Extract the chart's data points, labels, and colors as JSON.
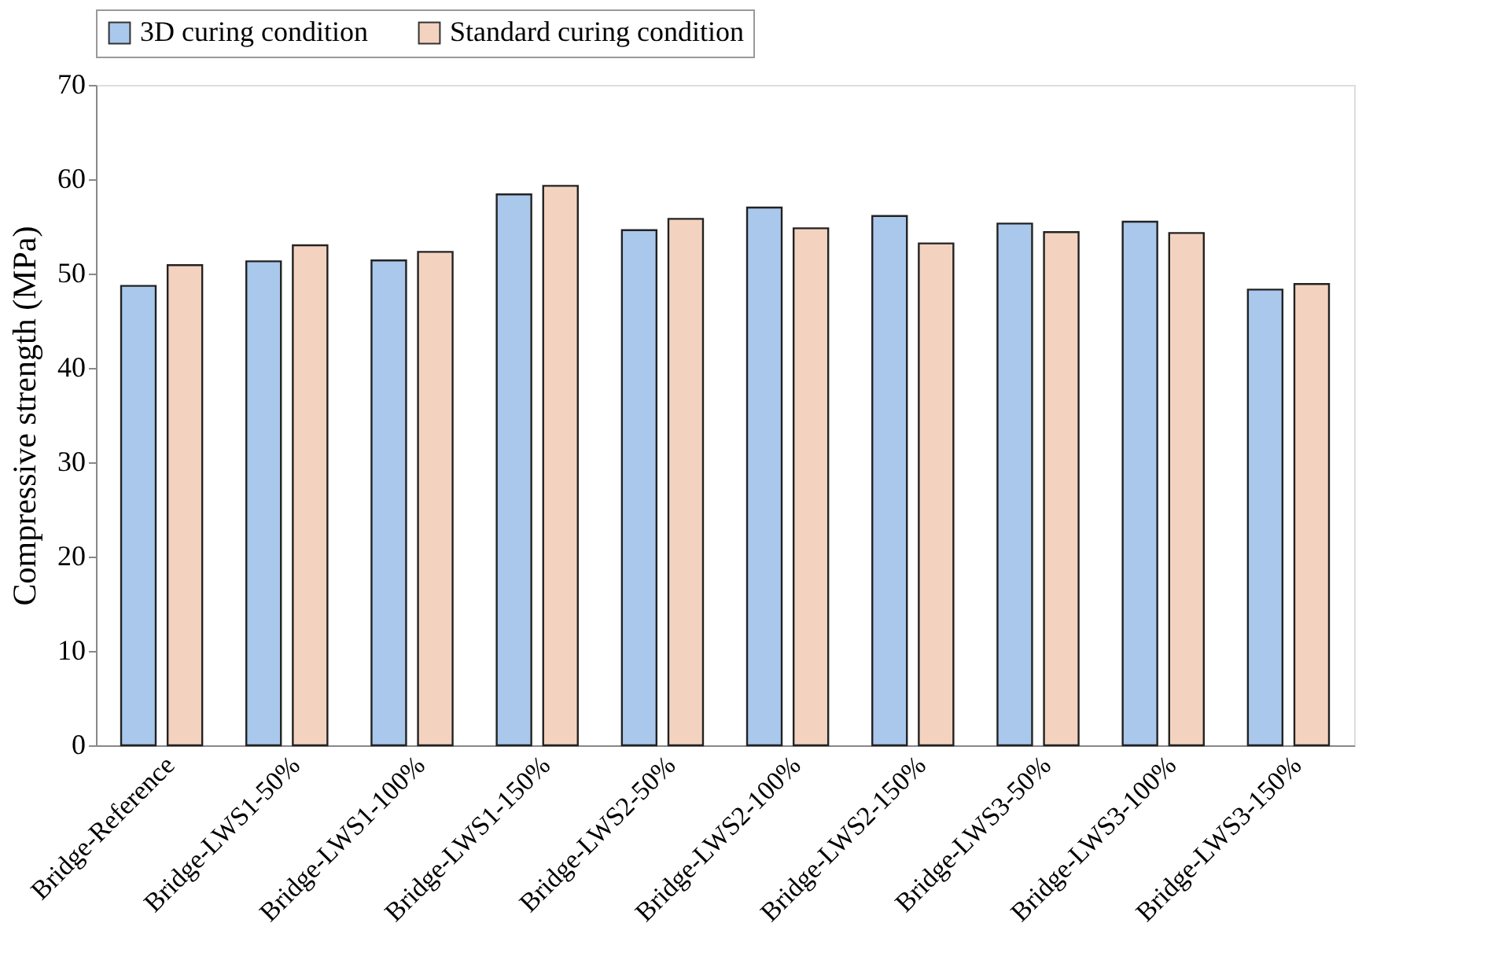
{
  "chart_data": {
    "type": "bar",
    "ylabel": "Compressive  strength (MPa)",
    "categories": [
      "Bridge-Reference",
      "Bridge-LWS1-50%",
      "Bridge-LWS1-100%",
      "Bridge-LWS1-150%",
      "Bridge-LWS2-50%",
      "Bridge-LWS2-100%",
      "Bridge-LWS2-150%",
      "Bridge-LWS3-50%",
      "Bridge-LWS3-100%",
      "Bridge-LWS3-150%"
    ],
    "series": [
      {
        "name": "3D curing condition",
        "color": "#a9c8ec",
        "values": [
          48.7,
          51.3,
          51.4,
          58.4,
          54.6,
          57.0,
          56.1,
          55.3,
          55.5,
          48.3
        ]
      },
      {
        "name": "Standard curing condition",
        "color": "#f3d3bf",
        "values": [
          50.9,
          53.0,
          52.3,
          59.3,
          55.8,
          54.8,
          53.2,
          54.4,
          54.3,
          48.9
        ]
      }
    ],
    "ylim": [
      0,
      70
    ],
    "yticks": [
      0,
      10,
      20,
      30,
      40,
      50,
      60,
      70
    ],
    "grid": false,
    "legend": "top"
  }
}
